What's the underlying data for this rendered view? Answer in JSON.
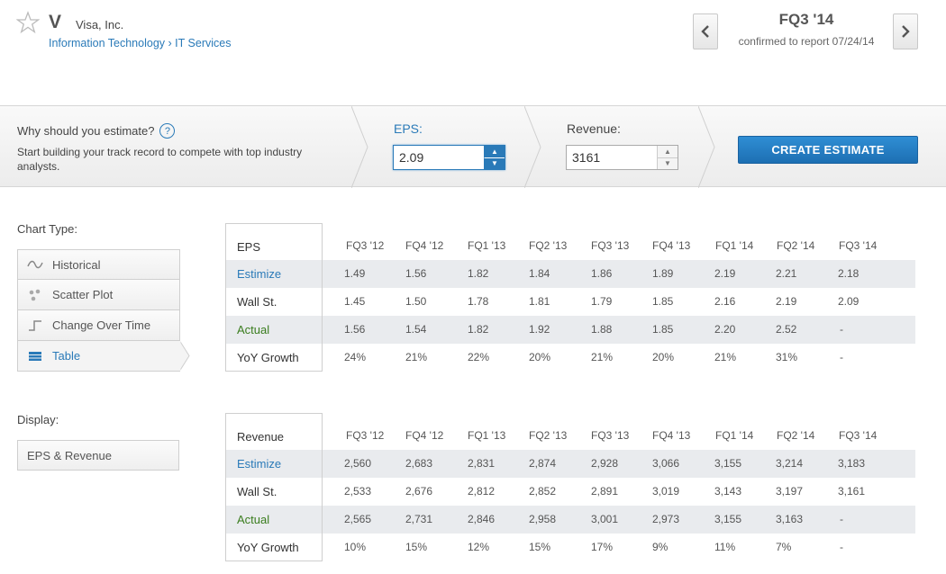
{
  "header": {
    "ticker": "V",
    "company": "Visa, Inc.",
    "breadcrumb": [
      "Information Technology",
      "IT Services"
    ],
    "breadcrumb_sep": "›",
    "quarter": "FQ3 '14",
    "confirmed": "confirmed to report 07/24/14"
  },
  "estimate_bar": {
    "why": "Why should you estimate?",
    "help": "?",
    "desc": "Start building your track record to compete with top industry analysts.",
    "eps_label": "EPS:",
    "eps_value": "2.09",
    "rev_label": "Revenue:",
    "rev_value": "3161",
    "create_label": "CREATE ESTIMATE",
    "accent": "#2a7ab8"
  },
  "sidebar": {
    "chart_type_label": "Chart Type:",
    "chart_types": [
      {
        "label": "Historical",
        "icon": "wave-icon"
      },
      {
        "label": "Scatter Plot",
        "icon": "scatter-icon"
      },
      {
        "label": "Change Over Time",
        "icon": "step-icon"
      },
      {
        "label": "Table",
        "icon": "table-icon"
      }
    ],
    "active_chart_type": "Table",
    "display_label": "Display:",
    "display_value": "EPS & Revenue"
  },
  "eps_table": {
    "title": "EPS",
    "columns": [
      "FQ3 '12",
      "FQ4 '12",
      "FQ1 '13",
      "FQ2 '13",
      "FQ3 '13",
      "FQ4 '13",
      "FQ1 '14",
      "FQ2 '14",
      "FQ3 '14"
    ],
    "rows": [
      {
        "label": "Estimize",
        "values": [
          "1.49",
          "1.56",
          "1.82",
          "1.84",
          "1.86",
          "1.89",
          "2.19",
          "2.21",
          "2.18"
        ]
      },
      {
        "label": "Wall St.",
        "values": [
          "1.45",
          "1.50",
          "1.78",
          "1.81",
          "1.79",
          "1.85",
          "2.16",
          "2.19",
          "2.09"
        ]
      },
      {
        "label": "Actual",
        "values": [
          "1.56",
          "1.54",
          "1.82",
          "1.92",
          "1.88",
          "1.85",
          "2.20",
          "2.52",
          "-"
        ]
      },
      {
        "label": "YoY Growth",
        "values": [
          "24%",
          "21%",
          "22%",
          "20%",
          "21%",
          "20%",
          "21%",
          "31%",
          "-"
        ]
      }
    ]
  },
  "rev_table": {
    "title": "Revenue",
    "columns": [
      "FQ3 '12",
      "FQ4 '12",
      "FQ1 '13",
      "FQ2 '13",
      "FQ3 '13",
      "FQ4 '13",
      "FQ1 '14",
      "FQ2 '14",
      "FQ3 '14"
    ],
    "rows": [
      {
        "label": "Estimize",
        "values": [
          "2,560",
          "2,683",
          "2,831",
          "2,874",
          "2,928",
          "3,066",
          "3,155",
          "3,214",
          "3,183"
        ]
      },
      {
        "label": "Wall St.",
        "values": [
          "2,533",
          "2,676",
          "2,812",
          "2,852",
          "2,891",
          "3,019",
          "3,143",
          "3,197",
          "3,161"
        ]
      },
      {
        "label": "Actual",
        "values": [
          "2,565",
          "2,731",
          "2,846",
          "2,958",
          "3,001",
          "2,973",
          "3,155",
          "3,163",
          "-"
        ]
      },
      {
        "label": "YoY Growth",
        "values": [
          "10%",
          "15%",
          "12%",
          "15%",
          "17%",
          "9%",
          "11%",
          "7%",
          "-"
        ]
      }
    ]
  }
}
